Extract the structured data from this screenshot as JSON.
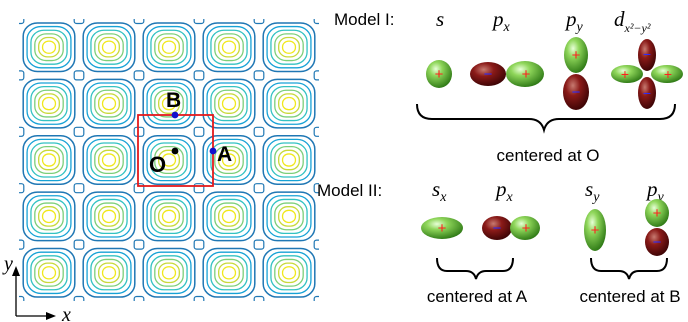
{
  "lattice": {
    "points": {
      "origin": "O",
      "a": "A",
      "b": "B"
    },
    "axes": {
      "x": "x",
      "y": "y"
    }
  },
  "model1": {
    "title": "Model I:",
    "orbitals": {
      "s": "s",
      "px_base": "p",
      "px_sub": "x",
      "py_base": "p",
      "py_sub": "y",
      "d_base": "d",
      "d_sub": "x²−y²"
    },
    "caption": "centered at O"
  },
  "model2": {
    "title": "Model II:",
    "orbitals": {
      "sx_base": "s",
      "sx_sub": "x",
      "px_base": "p",
      "px_sub": "x",
      "sy_base": "s",
      "sy_sub": "y",
      "py_base": "p",
      "py_sub": "y"
    },
    "caption_a": "centered at A",
    "caption_b": "centered at B"
  },
  "signs": {
    "plus": "+",
    "minus": "−"
  },
  "colors": {
    "contours": [
      "#1f77b4",
      "#17a2d6",
      "#33c2c2",
      "#7ccf7a",
      "#c8d93a",
      "#f0e81c"
    ],
    "lobe_positive": "#5fbf3a",
    "lobe_negative": "#7a0f10",
    "cell": "#e41a1c",
    "point_blue": "#1010cc",
    "sign_plus": "#ff2020",
    "sign_minus": "#2a2aff"
  }
}
